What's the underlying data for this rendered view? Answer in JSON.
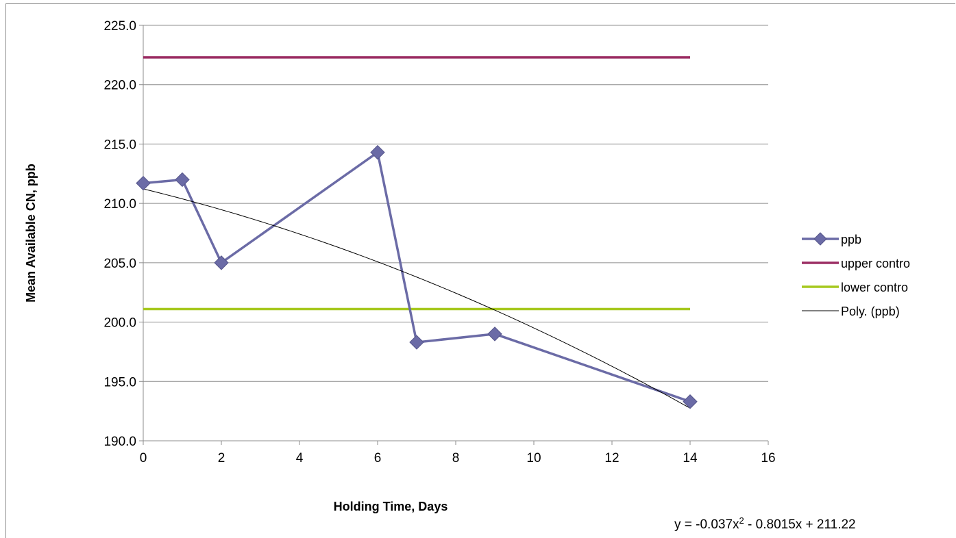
{
  "chart_data": {
    "type": "line",
    "title": "",
    "xlabel": "Holding Time, Days",
    "ylabel": "Mean Available CN, ppb",
    "xlim": [
      0,
      16
    ],
    "ylim": [
      190,
      225
    ],
    "x_ticks": [
      "0",
      "2",
      "4",
      "6",
      "8",
      "10",
      "12",
      "14",
      "16"
    ],
    "y_ticks": [
      "190.0",
      "195.0",
      "200.0",
      "205.0",
      "210.0",
      "215.0",
      "220.0",
      "225.0"
    ],
    "grid": "horizontal",
    "legend_position": "right",
    "series": [
      {
        "name": "ppb",
        "color": "#6b6ba6",
        "marker": "diamond",
        "x": [
          0,
          1,
          2,
          6,
          7,
          9,
          14
        ],
        "y": [
          211.7,
          212.0,
          205.0,
          214.3,
          198.3,
          199.0,
          193.3
        ]
      },
      {
        "name": "upper contro",
        "color": "#9b2d63",
        "x": [
          0,
          14
        ],
        "y": [
          222.3,
          222.3
        ]
      },
      {
        "name": "lower contro",
        "color": "#a6c81e",
        "x": [
          0,
          14
        ],
        "y": [
          201.1,
          201.1
        ]
      },
      {
        "name": "Poly. (ppb)",
        "color": "#000000",
        "trendline": {
          "a": -0.037,
          "b": -0.8015,
          "c": 211.22,
          "x_range": [
            0,
            14
          ]
        }
      }
    ],
    "equation": {
      "base": "y = -0.037x",
      "sup": "2",
      "rest": " - 0.8015x + 211.22"
    }
  }
}
